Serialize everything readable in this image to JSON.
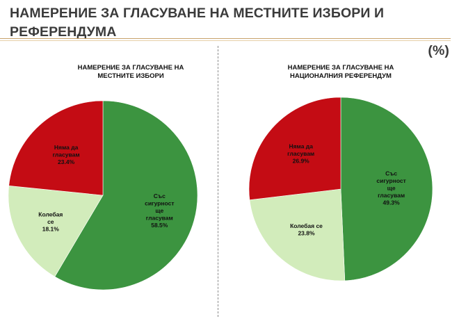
{
  "header": {
    "title_line1": "НАМЕРЕНИЕ ЗА ГЛАСУВАНЕ НА МЕСТНИТЕ ИЗБОРИ И РЕФЕРЕНДУМА",
    "title_line2": "(%)"
  },
  "colors": {
    "sure": "#3c9440",
    "hesitant": "#d2ecbb",
    "will_not": "#c40c14"
  },
  "chart_data": [
    {
      "type": "pie",
      "title": "НАМЕРЕНИЕ ЗА ГЛАСУВАНЕ НА МЕСТНИТЕ ИЗБОРИ",
      "categories": [
        "Със сигурност ще гласувам",
        "Колебая се",
        "Няма да гласувам"
      ],
      "values": [
        58.5,
        18.1,
        23.4
      ],
      "labels": [
        [
          "Със",
          "сигурност",
          "ще",
          "гласувам",
          "58.5%"
        ],
        [
          "Колебая",
          "се",
          "18.1%"
        ],
        [
          "Няма да",
          "гласувам",
          "23.4%"
        ]
      ]
    },
    {
      "type": "pie",
      "title": "НАМЕРЕНИЕ ЗА ГЛАСУВАНЕ НА НАЦИОНАЛНИЯ РЕФЕРЕНДУМ",
      "categories": [
        "Със сигурност ще гласувам",
        "Колебая се",
        "Няма да гласувам"
      ],
      "values": [
        49.3,
        23.8,
        26.9
      ],
      "labels": [
        [
          "Със",
          "сигурност",
          "ще",
          "гласувам",
          "49.3%"
        ],
        [
          "Колебая се",
          "23.8%"
        ],
        [
          "Няма да",
          "гласувам",
          "26.9%"
        ]
      ]
    }
  ]
}
